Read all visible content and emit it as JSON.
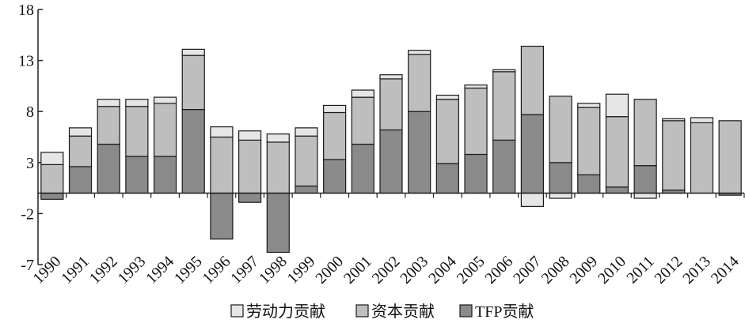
{
  "chart_data": {
    "type": "bar",
    "stacked": true,
    "categories": [
      "1990",
      "1991",
      "1992",
      "1993",
      "1994",
      "1995",
      "1996",
      "1997",
      "1998",
      "1999",
      "2000",
      "2001",
      "2002",
      "2003",
      "2004",
      "2005",
      "2006",
      "2007",
      "2008",
      "2009",
      "2010",
      "2011",
      "2012",
      "2013",
      "2014"
    ],
    "series": [
      {
        "name": "TFP贡献",
        "color": "#8a8a8a",
        "values": [
          -0.6,
          2.6,
          4.8,
          3.6,
          3.6,
          8.2,
          -4.5,
          -0.9,
          -5.8,
          0.7,
          3.3,
          4.8,
          6.2,
          8.0,
          2.9,
          3.8,
          5.2,
          7.7,
          3.0,
          1.8,
          0.6,
          2.7,
          0.3,
          0.0,
          -0.2
        ]
      },
      {
        "name": "资本贡献",
        "color": "#bebebe",
        "values": [
          2.8,
          3.0,
          3.7,
          4.9,
          5.2,
          5.3,
          5.5,
          5.2,
          5.0,
          4.9,
          4.6,
          4.6,
          5.0,
          5.6,
          6.3,
          6.5,
          6.7,
          6.7,
          6.5,
          6.6,
          6.9,
          6.5,
          6.8,
          6.9,
          7.1
        ]
      },
      {
        "name": "劳动力贡献",
        "color": "#e6e6e6",
        "values": [
          1.2,
          0.8,
          0.7,
          0.7,
          0.6,
          0.6,
          1.0,
          0.9,
          0.8,
          0.8,
          0.7,
          0.7,
          0.4,
          0.4,
          0.4,
          0.3,
          0.2,
          -1.3,
          -0.5,
          0.4,
          2.2,
          -0.5,
          0.2,
          0.5,
          0.0
        ]
      }
    ],
    "yticks": [
      18,
      13,
      8,
      3,
      -2,
      -7
    ],
    "ylim": [
      -7,
      18
    ],
    "grid": false,
    "legend_position": "bottom"
  },
  "colors": {
    "axis": "#222222",
    "bar_stroke": "#1a1a1a"
  }
}
